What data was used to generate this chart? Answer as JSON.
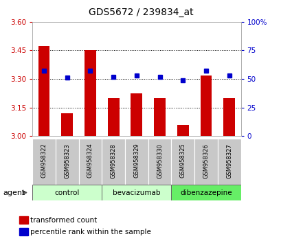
{
  "title": "GDS5672 / 239834_at",
  "samples": [
    "GSM958322",
    "GSM958323",
    "GSM958324",
    "GSM958328",
    "GSM958329",
    "GSM958330",
    "GSM958325",
    "GSM958326",
    "GSM958327"
  ],
  "bar_values": [
    3.475,
    3.12,
    3.45,
    3.2,
    3.225,
    3.2,
    3.06,
    3.32,
    3.2
  ],
  "percentile_values": [
    57,
    51,
    57,
    52,
    53,
    52,
    49,
    57,
    53
  ],
  "ylim_left": [
    3.0,
    3.6
  ],
  "ylim_right": [
    0,
    100
  ],
  "yticks_left": [
    3.0,
    3.15,
    3.3,
    3.45,
    3.6
  ],
  "yticks_right": [
    0,
    25,
    50,
    75,
    100
  ],
  "bar_color": "#cc0000",
  "dot_color": "#0000cc",
  "plot_bg": "#ffffff",
  "left_label_color": "#cc0000",
  "right_label_color": "#0000cc",
  "groups": [
    {
      "label": "control",
      "indices": [
        0,
        1,
        2
      ],
      "color": "#ccffcc"
    },
    {
      "label": "bevacizumab",
      "indices": [
        3,
        4,
        5
      ],
      "color": "#ccffcc"
    },
    {
      "label": "dibenzazepine",
      "indices": [
        6,
        7,
        8
      ],
      "color": "#66ee66"
    }
  ],
  "legend_items": [
    {
      "label": "transformed count",
      "color": "#cc0000"
    },
    {
      "label": "percentile rank within the sample",
      "color": "#0000cc"
    }
  ],
  "grid_yticks": [
    3.15,
    3.3,
    3.45
  ],
  "sample_box_color": "#c8c8c8",
  "agent_text": "agent"
}
